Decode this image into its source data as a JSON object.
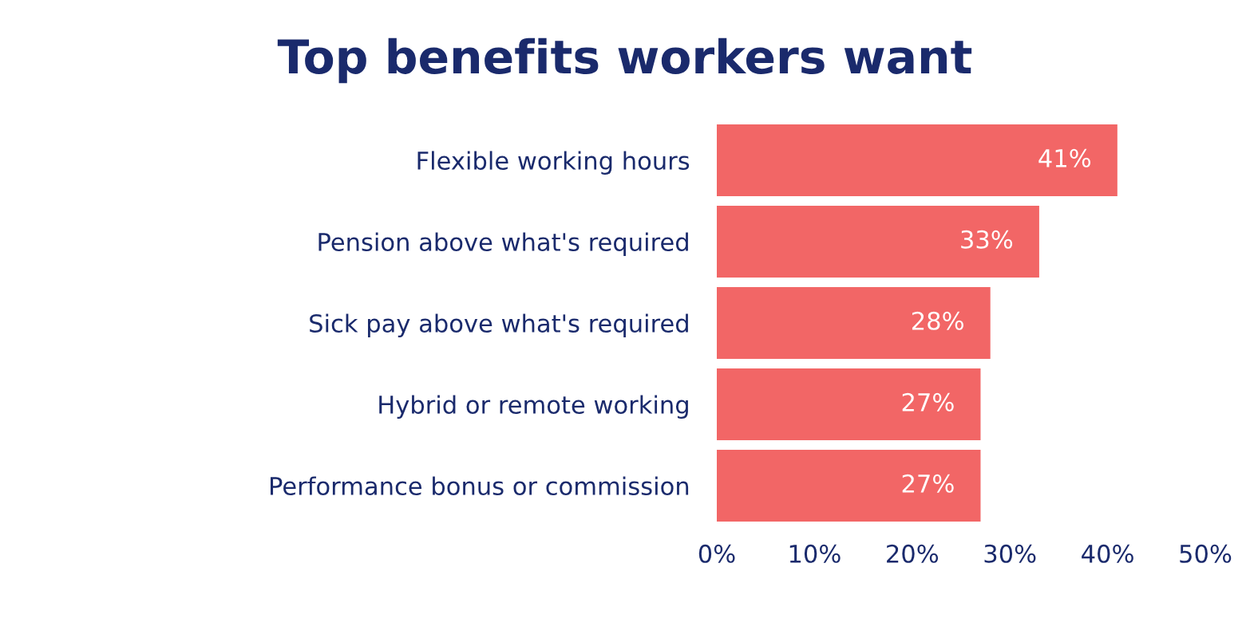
{
  "chart_data": {
    "type": "bar",
    "orientation": "horizontal",
    "title": "Top benefits workers want",
    "categories": [
      "Flexible working hours",
      "Pension above what's required",
      "Sick pay above what's required",
      "Hybrid or remote working",
      "Performance bonus or commission"
    ],
    "values": [
      41,
      33,
      28,
      27,
      27
    ],
    "color": "#f26666",
    "value_labels": [
      "41%",
      "33%",
      "28%",
      "27%",
      "27%"
    ],
    "xlim": [
      0,
      50
    ],
    "xticks": [
      {
        "value": 0,
        "label": "0%"
      },
      {
        "value": 10,
        "label": "10%"
      },
      {
        "value": 20,
        "label": "20%"
      },
      {
        "value": 30,
        "label": "30%"
      },
      {
        "value": 40,
        "label": "40%"
      },
      {
        "value": 50,
        "label": "50%"
      }
    ],
    "grid": false,
    "legend": false
  }
}
